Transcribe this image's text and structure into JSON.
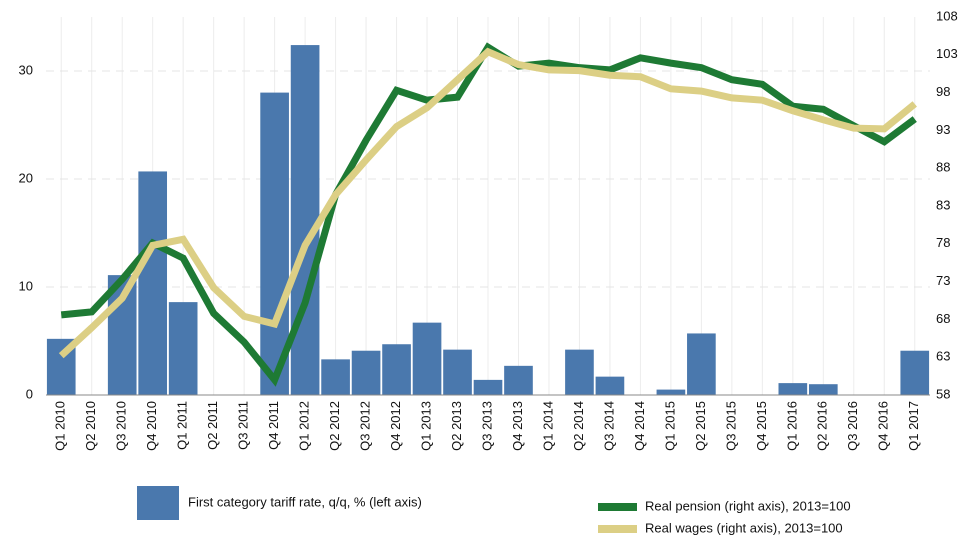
{
  "chart_data": {
    "type": "combo",
    "categories": [
      "Q1 2010",
      "Q2 2010",
      "Q3 2010",
      "Q4 2010",
      "Q1 2011",
      "Q2 2011",
      "Q3 2011",
      "Q4 2011",
      "Q1 2012",
      "Q2 2012",
      "Q3 2012",
      "Q4 2012",
      "Q1 2013",
      "Q2 2013",
      "Q3 2013",
      "Q4 2013",
      "Q1 2014",
      "Q2 2014",
      "Q3 2014",
      "Q4 2014",
      "Q1 2015",
      "Q2 2015",
      "Q3 2015",
      "Q4 2015",
      "Q1 2016",
      "Q2 2016",
      "Q3 2016",
      "Q4 2016",
      "Q1 2017"
    ],
    "series": [
      {
        "name": "First category tariff rate, q/q, % (left axis)",
        "type": "bar",
        "color": "#4a78ad",
        "values": [
          5.2,
          0,
          11.1,
          20.7,
          8.6,
          0,
          0,
          28.0,
          32.4,
          3.3,
          4.1,
          4.7,
          6.7,
          4.2,
          1.4,
          2.7,
          0,
          4.2,
          1.7,
          0,
          0.5,
          5.7,
          0,
          0,
          1.1,
          1.0,
          0,
          0,
          4.1
        ]
      },
      {
        "name": "Real pension (right axis), 2013=100",
        "type": "line",
        "axis": "y2",
        "color": "#1e7a34",
        "values": [
          68.6,
          69.0,
          73.3,
          78.1,
          76.1,
          68.8,
          65.0,
          60.0,
          70.2,
          84.5,
          91.7,
          98.3,
          97.0,
          97.4,
          104.0,
          101.5,
          101.9,
          101.3,
          101.0,
          102.6,
          101.9,
          101.3,
          99.7,
          99.1,
          96.2,
          95.8,
          93.6,
          91.5,
          94.5
        ]
      },
      {
        "name": "Real wages (right axis), 2013=100",
        "type": "line",
        "axis": "y2",
        "color": "#dccf85",
        "values": [
          63.2,
          66.9,
          70.8,
          77.8,
          78.6,
          72.2,
          68.4,
          67.4,
          77.8,
          84.5,
          89.1,
          93.5,
          96.0,
          99.7,
          103.4,
          101.7,
          101.0,
          100.9,
          100.3,
          100.1,
          98.5,
          98.2,
          97.3,
          97.0,
          95.6,
          94.4,
          93.3,
          93.2,
          96.5
        ]
      }
    ],
    "ylim": [
      0,
      35
    ],
    "yticks": [
      0,
      10,
      20,
      30
    ],
    "y2lim": [
      58,
      108
    ],
    "y2ticks": [
      58,
      63,
      68,
      73,
      78,
      83,
      88,
      93,
      98,
      103,
      108
    ],
    "grid": true
  }
}
